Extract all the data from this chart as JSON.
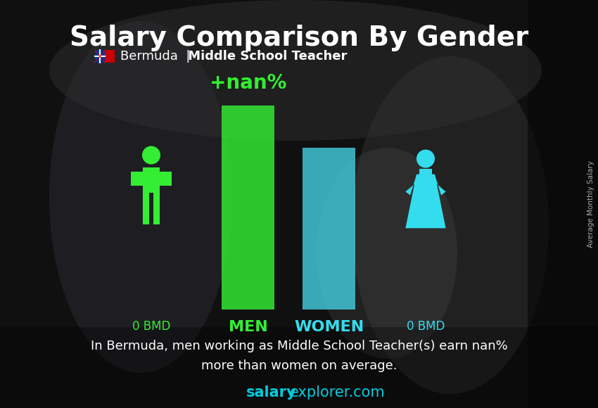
{
  "title": "Salary Comparison By Gender",
  "subtitle_country": "Bermuda",
  "subtitle_job": "Middle School Teacher",
  "men_salary": "0 BMD",
  "women_salary": "0 BMD",
  "diff_label": "+nan%",
  "men_label": "MEN",
  "women_label": "WOMEN",
  "bottom_text_line1": "In Bermuda, men working as Middle School Teacher(s) earn nan%",
  "bottom_text_line2": "more than women on average.",
  "website_bold": "salary",
  "website_rest": "explorer.com",
  "right_label": "Average Monthly Salary",
  "title_color": "#ffffff",
  "subtitle_color": "#ffffff",
  "men_color": "#33ee33",
  "women_color": "#33ddee",
  "bar_men_color": "#33ee33",
  "bar_women_color": "#44ccdd",
  "diff_color": "#33ee33",
  "bottom_text_color": "#ffffff",
  "salary_text_color": "#33ee33",
  "salary_text_color_w": "#33ddee",
  "website_color": "#00ccdd",
  "right_label_color": "#aaaaaa",
  "bg_top_color": "#3a3a3a",
  "bg_mid_color": "#2a2a2a",
  "bg_bot_color": "#222222"
}
